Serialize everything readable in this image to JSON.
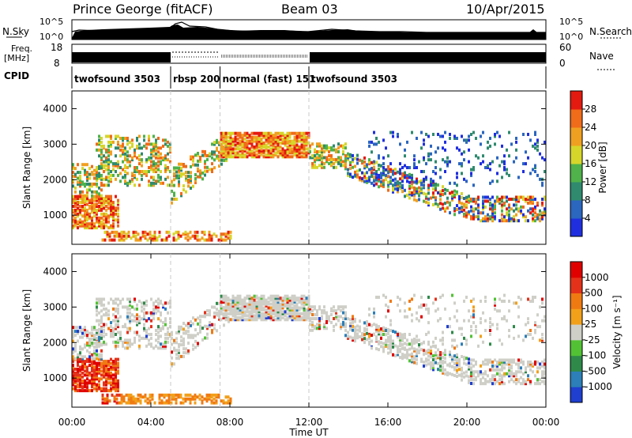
{
  "header": {
    "station": "Prince George (fitACF)",
    "beam": "Beam 03",
    "date": "10/Apr/2015"
  },
  "top_panel_labels": {
    "nsky": "N.Sky",
    "nsky_top": "10^5",
    "nsky_bottom": "10^0",
    "nsearch": "N.Search",
    "nsearch_top": "10^5",
    "nsearch_bottom": "10^0",
    "freq_label_1": "Freq.",
    "freq_label_2": "[MHz]",
    "freq_top": "18",
    "freq_bottom": "8",
    "nave_label": "Nave",
    "nave_top": "60",
    "nave_bottom": "0",
    "cpid_label": "CPID"
  },
  "chart_data": [
    {
      "type": "table",
      "title": "CPID",
      "x": [
        0,
        5,
        7.5,
        12
      ],
      "labels": [
        "twofsound 3503",
        "rbsp 200",
        "normal (fast) 151",
        "twofsound 3503"
      ]
    },
    {
      "type": "heatmap",
      "title": "Power",
      "ylabel": "Slant Range [km]",
      "ylim": [
        180,
        4500
      ],
      "yticks": [
        "1000",
        "2000",
        "3000",
        "4000"
      ],
      "colorbar_label": "Power [dB]",
      "colorbar_ticks": [
        "4",
        "8",
        "12",
        "16",
        "20",
        "24",
        "28"
      ],
      "colors": [
        "#1f2fe0",
        "#2b66bf",
        "#2f8a6e",
        "#4fb24a",
        "#d6d62a",
        "#f0a020",
        "#f06b1a",
        "#e41a10"
      ]
    },
    {
      "type": "heatmap",
      "title": "Velocity",
      "ylabel": "Slant Range [km]",
      "ylim": [
        180,
        4500
      ],
      "yticks": [
        "1000",
        "2000",
        "3000",
        "4000"
      ],
      "colorbar_label": "Velocity [m s⁻¹]",
      "colorbar_ticks": [
        "1000",
        "500",
        "100",
        "25",
        "-25",
        "-100",
        "-500",
        "-1000"
      ],
      "colors": [
        "#1f3fd0",
        "#2c7fb8",
        "#2f8a4a",
        "#52c234",
        "#cfcfc8",
        "#f2a01a",
        "#f07a12",
        "#e4321a",
        "#e00000"
      ]
    }
  ],
  "x_axis": {
    "ticks": [
      "00:00",
      "04:00",
      "08:00",
      "12:00",
      "16:00",
      "20:00",
      "00:00"
    ],
    "label": "Time UT"
  }
}
